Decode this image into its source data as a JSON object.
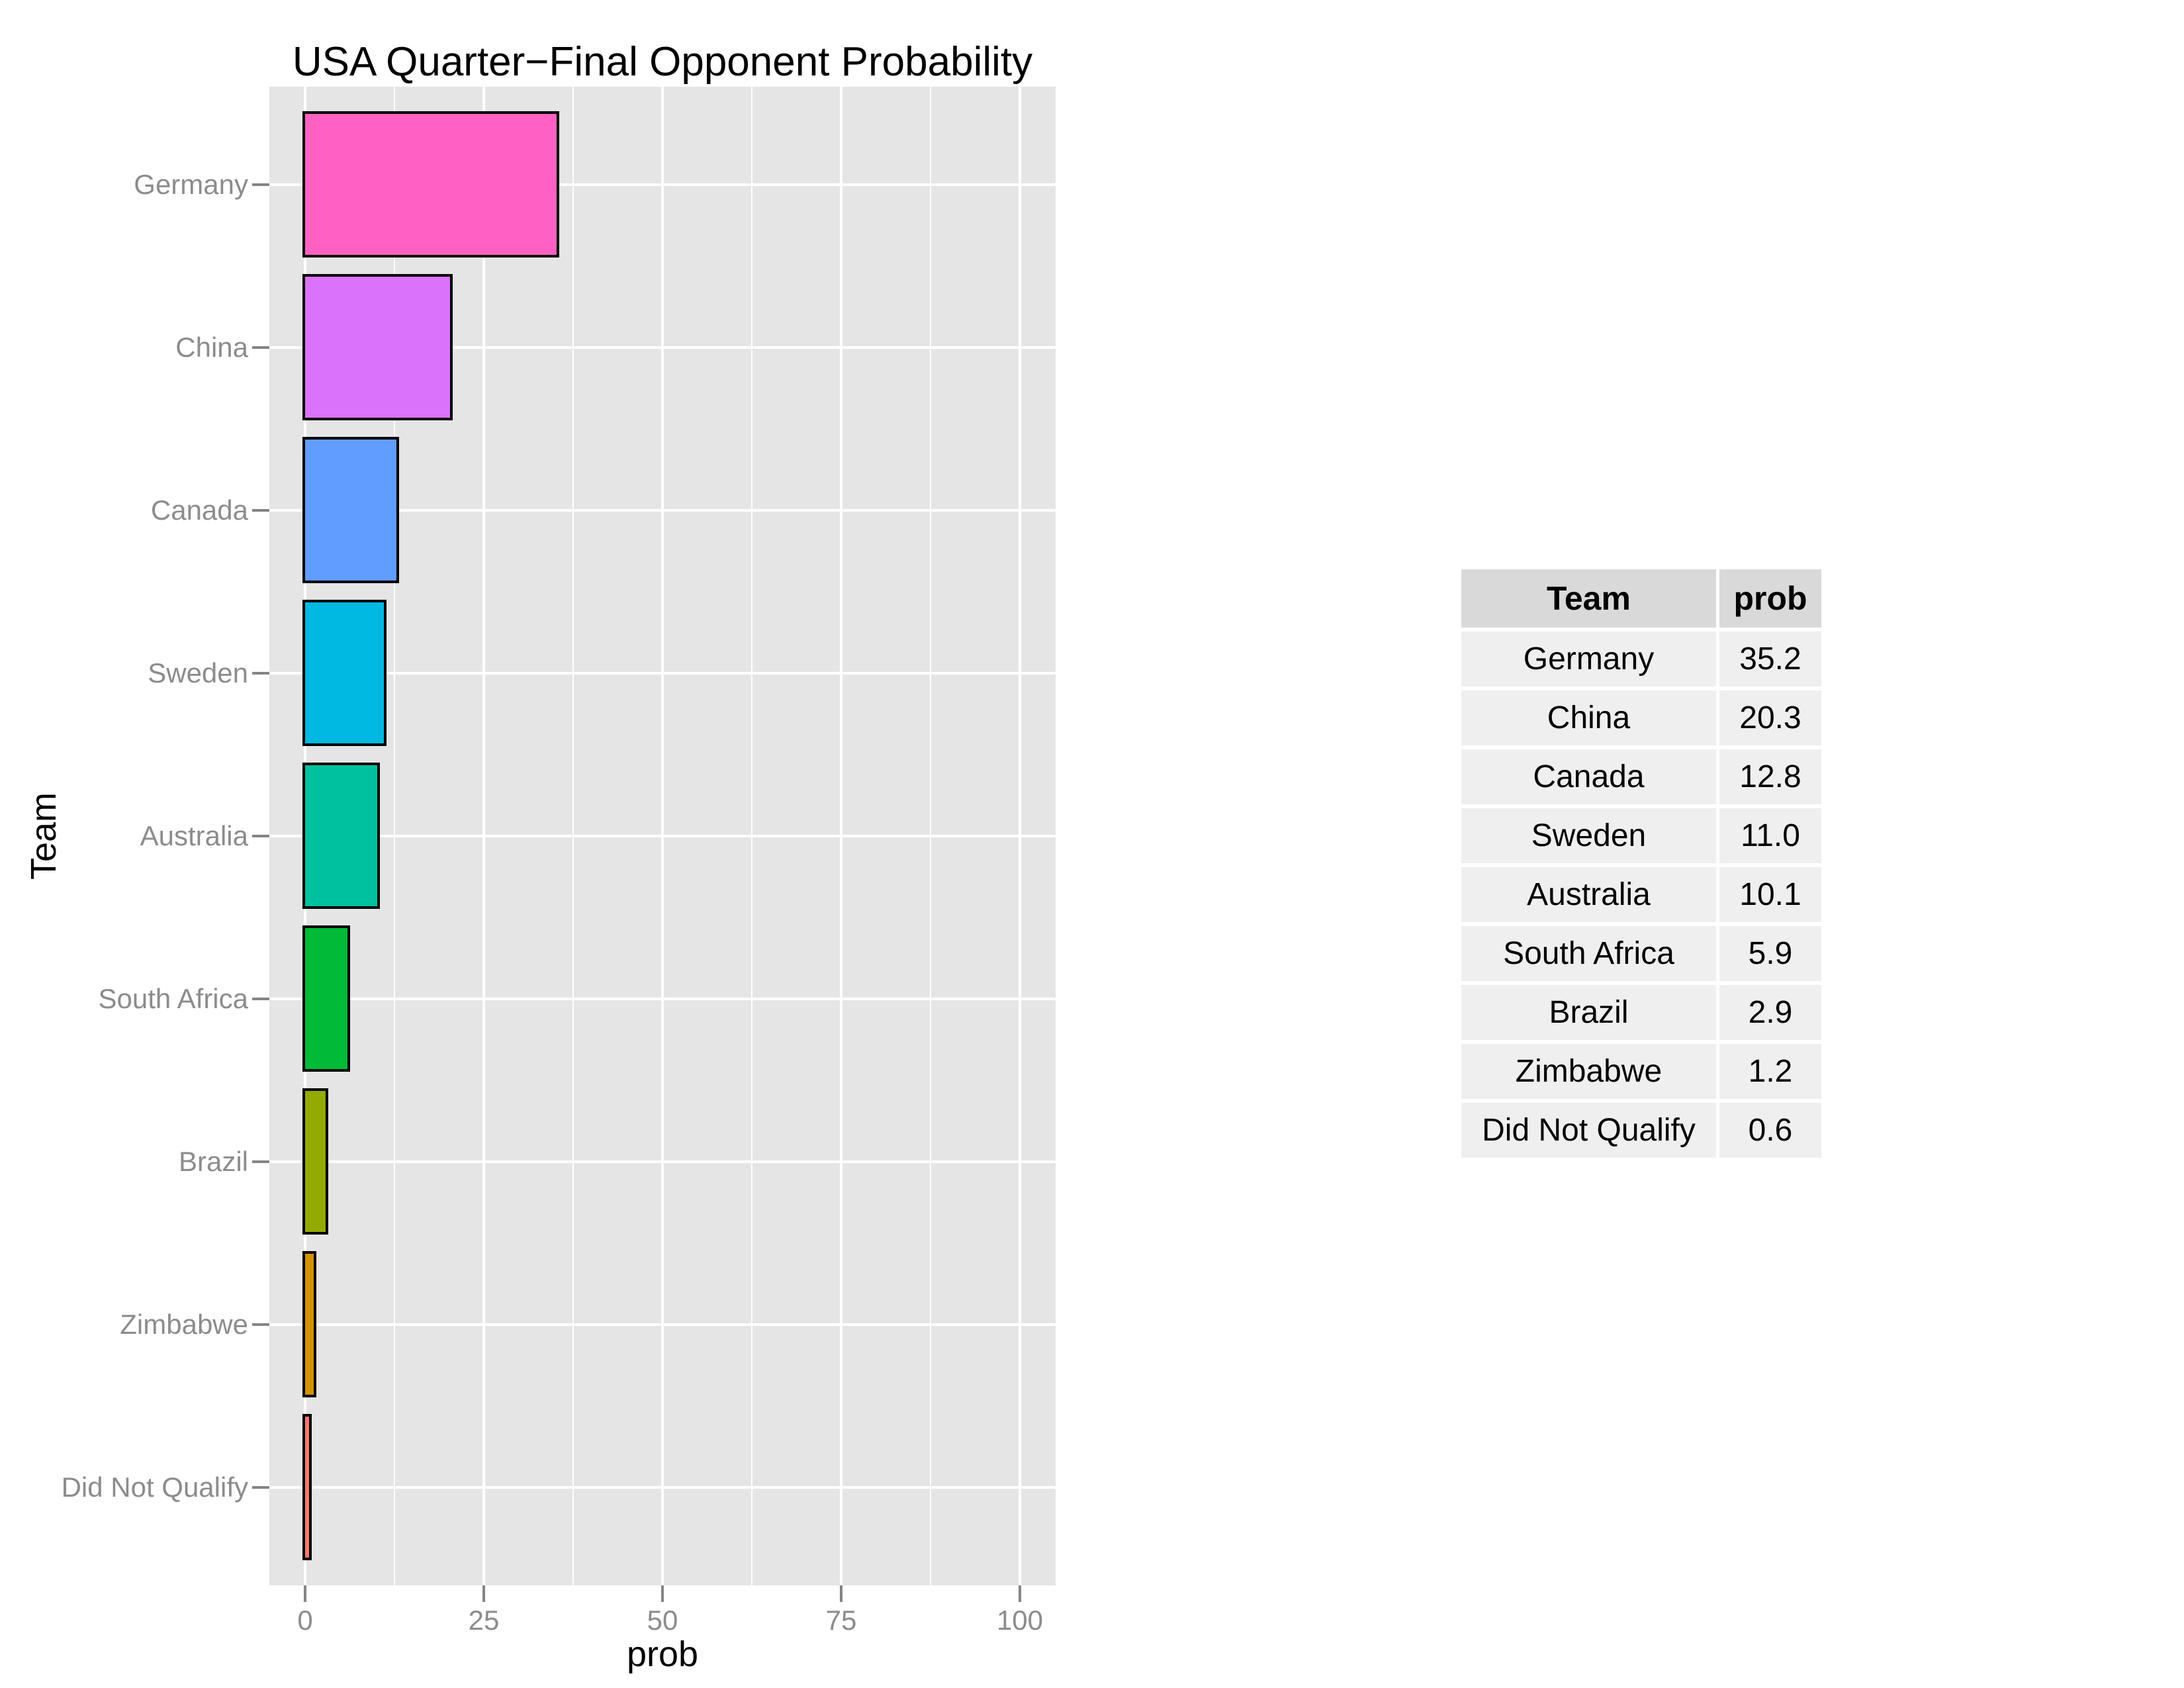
{
  "chart_data": {
    "type": "bar",
    "orientation": "horizontal",
    "title": "USA Quarter−Final Opponent Probability",
    "xlabel": "prob",
    "ylabel": "Team",
    "categories": [
      "Germany",
      "China",
      "Canada",
      "Sweden",
      "Australia",
      "South Africa",
      "Brazil",
      "Zimbabwe",
      "Did Not Qualify"
    ],
    "values": [
      35.2,
      20.3,
      12.8,
      11.0,
      10.1,
      5.9,
      2.9,
      1.2,
      0.6
    ],
    "bar_colors": [
      "#FF61C3",
      "#DB72FB",
      "#619CFF",
      "#00B9E3",
      "#00C19F",
      "#00BA38",
      "#93AA00",
      "#D39200",
      "#F8766D"
    ],
    "xlim": [
      0,
      100
    ],
    "x_ticks": [
      0,
      25,
      50,
      75,
      100
    ],
    "x_minor_ticks": [
      12.5,
      37.5,
      62.5,
      87.5
    ],
    "grid": true,
    "legend": "none",
    "panel_bg": "#E5E5E5",
    "grid_color": "#FFFFFF",
    "bar_border_color": "#000000",
    "axis_text_color": "#8C8C8C",
    "tick_color": "#848484"
  },
  "table": {
    "headers": [
      "Team",
      "prob"
    ],
    "header_bg": "#D9D9D9",
    "row_bg": "#EFEFEF",
    "rows": [
      [
        "Germany",
        "35.2"
      ],
      [
        "China",
        "20.3"
      ],
      [
        "Canada",
        "12.8"
      ],
      [
        "Sweden",
        "11.0"
      ],
      [
        "Australia",
        "10.1"
      ],
      [
        "South Africa",
        "5.9"
      ],
      [
        "Brazil",
        "2.9"
      ],
      [
        "Zimbabwe",
        "1.2"
      ],
      [
        "Did Not Qualify",
        "0.6"
      ]
    ]
  }
}
